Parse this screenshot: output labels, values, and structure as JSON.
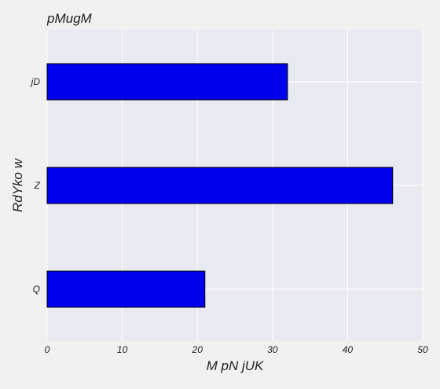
{
  "chart_data": {
    "type": "bar",
    "orientation": "horizontal",
    "title": "pMugM",
    "xlabel": "M pN jUK",
    "ylabel": "RdYko w",
    "categories": [
      "Q",
      "Z",
      "jD"
    ],
    "values": [
      21,
      46,
      32
    ],
    "xlim": [
      0,
      50
    ],
    "x_ticks": [
      "0",
      "10",
      "20",
      "30",
      "40",
      "50"
    ],
    "grid": true,
    "legend": "none"
  },
  "colors": {
    "bar_fill": "#0000ee",
    "bar_edge": "#000000",
    "plot_background": "#e9e9f1",
    "figure_background": "#f0f0f0",
    "grid": "#ffffff"
  }
}
